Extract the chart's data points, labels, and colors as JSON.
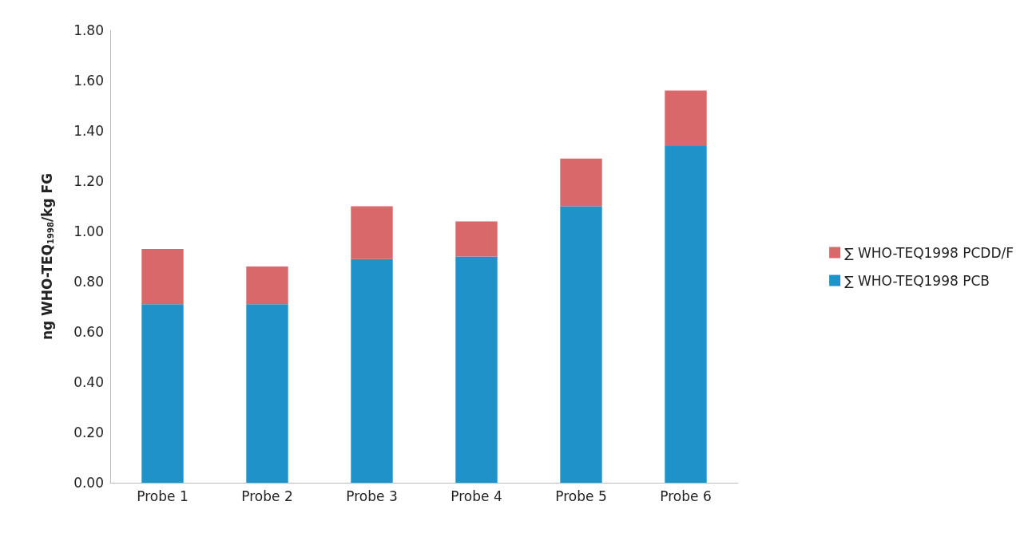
{
  "chart_data": {
    "type": "bar",
    "stacked": true,
    "ylabel": "ng WHO-TEQ$_{1998}$/kg FG",
    "categories": [
      "Probe 1",
      "Probe 2",
      "Probe 3",
      "Probe 4",
      "Probe 5",
      "Probe 6"
    ],
    "series": [
      {
        "name": "∑ WHO-TEQ1998 PCB",
        "color": "#1f93c9",
        "values": [
          0.71,
          0.71,
          0.89,
          0.9,
          1.1,
          1.34
        ]
      },
      {
        "name": "∑ WHO-TEQ1998 PCDD/F",
        "color": "#d9686a",
        "values": [
          0.22,
          0.15,
          0.21,
          0.14,
          0.19,
          0.22
        ]
      }
    ],
    "ylim": [
      0,
      1.8
    ],
    "yticks": [
      {
        "value": 0,
        "label": "0.00"
      },
      {
        "value": 0.2,
        "label": "0.20"
      },
      {
        "value": 0.4,
        "label": "0.40"
      },
      {
        "value": 0.6,
        "label": "0.60"
      },
      {
        "value": 0.8,
        "label": "0.80"
      },
      {
        "value": 1.0,
        "label": "1.00"
      },
      {
        "value": 1.2,
        "label": "1.20"
      },
      {
        "value": 1.4,
        "label": "1.40"
      },
      {
        "value": 1.6,
        "label": "1.60"
      },
      {
        "value": 1.8,
        "label": "1.80"
      }
    ],
    "grid": false,
    "legend": "right"
  }
}
